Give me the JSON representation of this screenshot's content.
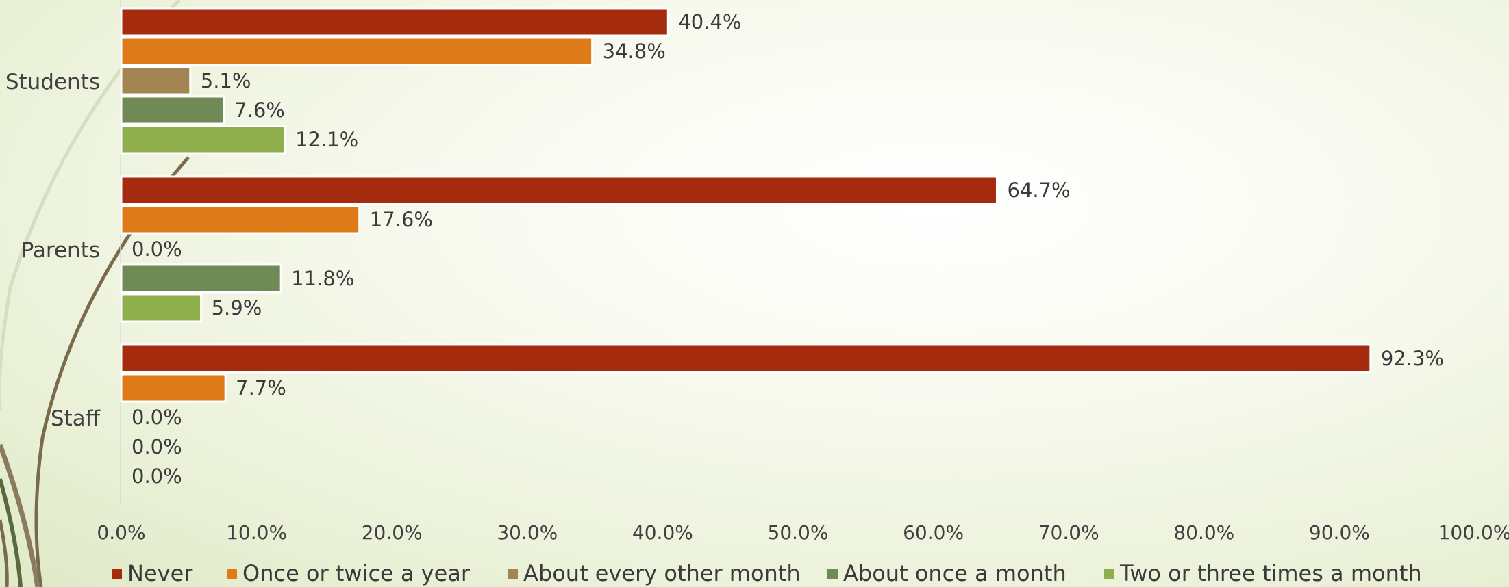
{
  "chart_data": {
    "type": "bar",
    "orientation": "horizontal",
    "categories": [
      "Students",
      "Parents",
      "Staff"
    ],
    "series": [
      {
        "name": "Never",
        "color": "#a52b0e",
        "values": [
          40.4,
          64.7,
          92.3
        ],
        "labels": [
          "40.4%",
          "64.7%",
          "92.3%"
        ]
      },
      {
        "name": "Once or twice a year",
        "color": "#e07b1a",
        "values": [
          34.8,
          17.6,
          7.7
        ],
        "labels": [
          "34.8%",
          "17.6%",
          "7.7%"
        ]
      },
      {
        "name": "About every other month",
        "color": "#a38453",
        "values": [
          5.1,
          0.0,
          0.0
        ],
        "labels": [
          "5.1%",
          "0.0%",
          "0.0%"
        ]
      },
      {
        "name": "About once a month",
        "color": "#6f8a55",
        "values": [
          7.6,
          11.8,
          0.0
        ],
        "labels": [
          "7.6%",
          "11.8%",
          "0.0%"
        ]
      },
      {
        "name": "Two or three times a month",
        "color": "#8fae4c",
        "values": [
          12.1,
          5.9,
          0.0
        ],
        "labels": [
          "12.1%",
          "5.9%",
          "0.0%"
        ]
      }
    ],
    "xlim": [
      0,
      100
    ],
    "xticks": [
      "0.0%",
      "10.0%",
      "20.0%",
      "30.0%",
      "40.0%",
      "50.0%",
      "60.0%",
      "70.0%",
      "80.0%",
      "90.0%",
      "100.0%"
    ],
    "grid": false,
    "legend_position": "bottom"
  }
}
